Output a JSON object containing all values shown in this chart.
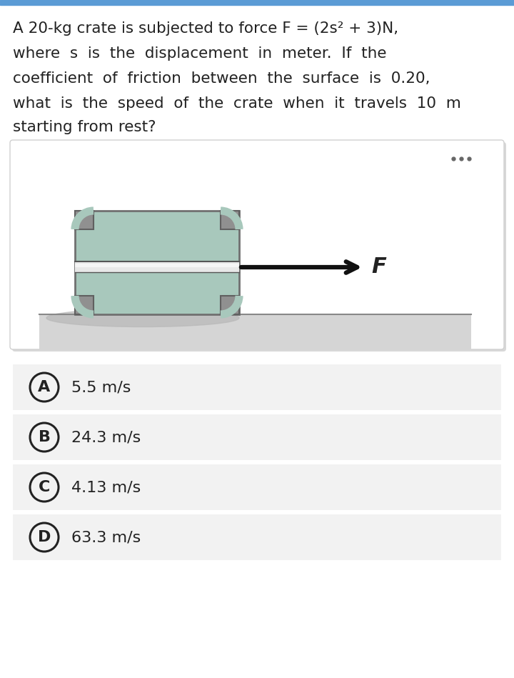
{
  "bg_color": "#ffffff",
  "top_bar_color": "#5b9bd5",
  "question_text_lines": [
    "A 20-kg crate is subjected to force F = (2s² + 3)N,",
    "where  s  is  the  displacement  in  meter.  If  the",
    "coefficient  of  friction  between  the  surface  is  0.20,",
    "what  is  the  speed  of  the  crate  when  it  travels  10  m",
    "starting from rest?"
  ],
  "diagram_box_bg": "#f7f7f7",
  "diagram_box_border": "#d0d0d0",
  "crate_fill": "#a8c8bc",
  "crate_border": "#707070",
  "corner_fill": "#909090",
  "corner_border": "#606060",
  "ground_line_color": "#888888",
  "ground_fill": "#d0d0d0",
  "shadow_color": "#c0c0c0",
  "arrow_color": "#111111",
  "F_label": "F",
  "dots_color": "#666666",
  "option_bg": "#f2f2f2",
  "options": [
    {
      "label": "A",
      "text": "5.5 m/s"
    },
    {
      "label": "B",
      "text": "24.3 m/s"
    },
    {
      "label": "C",
      "text": "4.13 m/s"
    },
    {
      "label": "D",
      "text": "63.3 m/s"
    }
  ],
  "text_color": "#222222",
  "font_size_question": 15.5,
  "font_size_option": 15
}
